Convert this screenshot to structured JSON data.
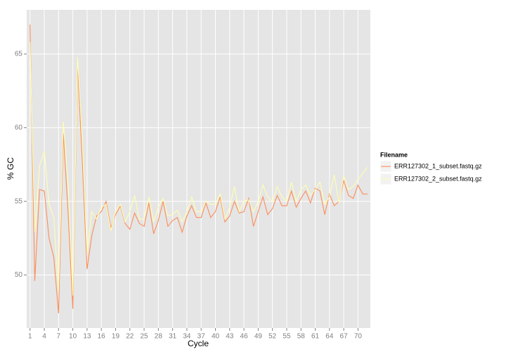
{
  "chart_data": {
    "type": "line",
    "x_label": "Cycle",
    "y_label": "% GC",
    "legend_title": "Filename",
    "x": [
      1,
      2,
      3,
      4,
      5,
      6,
      7,
      8,
      9,
      10,
      11,
      12,
      13,
      14,
      15,
      16,
      17,
      18,
      19,
      20,
      21,
      22,
      23,
      24,
      25,
      26,
      27,
      28,
      29,
      30,
      31,
      32,
      33,
      34,
      35,
      36,
      37,
      38,
      39,
      40,
      41,
      42,
      43,
      44,
      45,
      46,
      47,
      48,
      49,
      50,
      51,
      52,
      53,
      54,
      55,
      56,
      57,
      58,
      59,
      60,
      61,
      62,
      63,
      64,
      65,
      66,
      67,
      68,
      69,
      70,
      71,
      72
    ],
    "series": [
      {
        "name": "ERR127302_1_subset.fastq.gz",
        "color": "#fc8d59",
        "values": [
          67.0,
          49.6,
          55.8,
          55.7,
          52.5,
          51.2,
          47.4,
          59.6,
          54.3,
          47.7,
          64.3,
          57.7,
          50.4,
          52.7,
          54.0,
          54.3,
          55.0,
          53.2,
          54.1,
          54.7,
          53.5,
          53.1,
          54.2,
          53.5,
          53.3,
          54.9,
          52.8,
          53.7,
          55.0,
          53.3,
          53.7,
          53.9,
          52.9,
          54.0,
          54.7,
          53.9,
          53.9,
          54.9,
          53.9,
          54.3,
          55.3,
          53.6,
          54.0,
          55.0,
          54.2,
          54.3,
          55.2,
          53.3,
          54.3,
          55.3,
          54.1,
          54.5,
          55.4,
          54.7,
          54.7,
          55.7,
          54.6,
          55.2,
          55.7,
          54.9,
          55.9,
          55.7,
          54.1,
          55.5,
          54.7,
          55.0,
          56.4,
          55.4,
          55.2,
          56.1,
          55.5,
          55.5
        ]
      },
      {
        "name": "ERR127302_2_subset.fastq.gz",
        "color": "#ffffb2",
        "values": [
          65.8,
          52.9,
          57.4,
          58.4,
          54.8,
          53.9,
          48.9,
          60.4,
          56.2,
          48.6,
          64.8,
          59.1,
          51.5,
          54.3,
          53.8,
          54.6,
          54.8,
          53.0,
          54.3,
          54.8,
          53.6,
          54.3,
          55.4,
          53.8,
          53.8,
          55.3,
          53.6,
          54.6,
          55.2,
          54.0,
          54.1,
          54.4,
          53.6,
          54.3,
          55.3,
          54.3,
          54.3,
          55.0,
          54.8,
          54.8,
          55.5,
          53.8,
          54.6,
          56.0,
          54.3,
          55.0,
          55.1,
          54.3,
          55.0,
          56.1,
          55.3,
          55.0,
          56.0,
          55.3,
          55.0,
          56.3,
          55.0,
          55.8,
          56.1,
          55.4,
          55.8,
          56.3,
          54.8,
          55.3,
          56.8,
          54.9,
          56.7,
          55.8,
          56.0,
          56.5,
          56.9,
          57.3
        ]
      }
    ],
    "xlim": [
      0.3,
      72.6
    ],
    "xticks": [
      1,
      4,
      7,
      10,
      13,
      16,
      19,
      22,
      25,
      28,
      31,
      34,
      37,
      40,
      43,
      46,
      49,
      52,
      55,
      58,
      61,
      64,
      67,
      70
    ],
    "ylim": [
      46.4,
      68.0
    ],
    "yticks": [
      50,
      55,
      60,
      65
    ],
    "grid": true,
    "legend": "right"
  }
}
